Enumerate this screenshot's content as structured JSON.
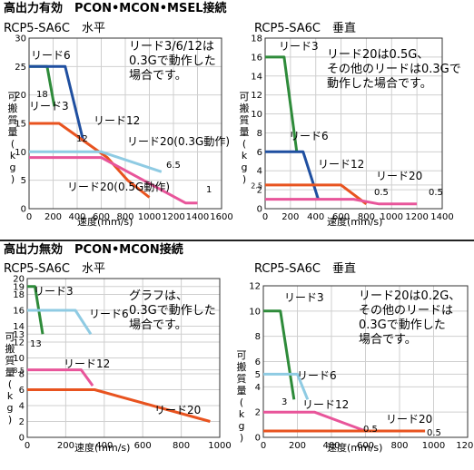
{
  "sections": [
    {
      "title": "高出力有効　PCON•MCON•MSEL接続"
    },
    {
      "title": "高出力無効　PCON•MCON接続"
    }
  ],
  "chart_data": [
    {
      "type": "line",
      "title": "RCP5-SA6C　水平",
      "xlabel": "速度(mm/s)",
      "ylabel": "可搬質量(kg)",
      "xlim": [
        0,
        1600
      ],
      "ylim": [
        0,
        30
      ],
      "xticks": [
        0,
        200,
        400,
        600,
        800,
        1000,
        1200,
        1400,
        1600
      ],
      "yticks": [
        0,
        5,
        10,
        15,
        20,
        25,
        30
      ],
      "grid": true,
      "series": [
        {
          "name": "リード3",
          "color": "#2e8b3a",
          "points": [
            [
              0,
              25
            ],
            [
              150,
              25
            ],
            [
              210,
              18
            ]
          ],
          "endlabel": "18"
        },
        {
          "name": "リード6",
          "color": "#1f4fa0",
          "points": [
            [
              0,
              25
            ],
            [
              300,
              25
            ],
            [
              450,
              12
            ]
          ],
          "endlabel": "12"
        },
        {
          "name": "リード12",
          "color": "#e8531f",
          "points": [
            [
              0,
              15
            ],
            [
              250,
              15
            ],
            [
              650,
              9
            ],
            [
              820,
              5
            ],
            [
              1000,
              2
            ]
          ]
        },
        {
          "name": "リード20(0.3G動作)",
          "color": "#8fcbe3",
          "points": [
            [
              0,
              10
            ],
            [
              600,
              10
            ],
            [
              1100,
              6.5
            ]
          ],
          "endlabel": "6.5"
        },
        {
          "name": "リード20(0.5G動作)",
          "color": "#e8559a",
          "points": [
            [
              0,
              9
            ],
            [
              600,
              9
            ],
            [
              1300,
              1
            ],
            [
              1400,
              1
            ]
          ],
          "endlabel": "1"
        }
      ],
      "note": "リード3/6/12は0.3Gで動作した場合です。",
      "labels": {
        "lead6": "リード6",
        "lead3": "リード3",
        "lead12": "リード12",
        "lead20a": "リード20(0.3G動作)",
        "lead20b": "リード20(0.5G動作)",
        "v18": "18",
        "v12": "12",
        "v65": "6.5",
        "v1": "1"
      }
    },
    {
      "type": "line",
      "title": "RCP5-SA6C　垂直",
      "xlabel": "速度(mm/s)",
      "ylabel": "可搬質量(kg)",
      "xlim": [
        0,
        1400
      ],
      "ylim": [
        0,
        18
      ],
      "xticks": [
        0,
        200,
        400,
        600,
        800,
        1000,
        1200,
        1400
      ],
      "yticks": [
        0,
        2,
        2.5,
        4,
        6,
        8,
        10,
        12,
        14,
        16,
        18
      ],
      "grid": true,
      "series": [
        {
          "name": "リード3",
          "color": "#2e8b3a",
          "points": [
            [
              0,
              16
            ],
            [
              150,
              16
            ],
            [
              250,
              6
            ]
          ]
        },
        {
          "name": "リード6",
          "color": "#1f4fa0",
          "points": [
            [
              0,
              6
            ],
            [
              300,
              6
            ],
            [
              420,
              1
            ]
          ]
        },
        {
          "name": "リード12",
          "color": "#e8531f",
          "points": [
            [
              0,
              2.5
            ],
            [
              600,
              2.5
            ],
            [
              800,
              0.5
            ]
          ],
          "endlabel": "0.5"
        },
        {
          "name": "リード20",
          "color": "#e8559a",
          "points": [
            [
              0,
              1
            ],
            [
              700,
              1
            ],
            [
              900,
              0.5
            ],
            [
              1200,
              0.5
            ]
          ],
          "endlabel": "0.5"
        }
      ],
      "note": "リード20は0.5G、その他のリードは0.3Gで動作した場合です。",
      "labels": {
        "lead3": "リード3",
        "lead6": "リード6",
        "lead12": "リード12",
        "lead20": "リード20",
        "v05a": "0.5",
        "v05b": "0.5"
      }
    },
    {
      "type": "line",
      "title": "RCP5-SA6C　水平",
      "xlabel": "速度(mm/s)",
      "ylabel": "可搬質量(kg)",
      "xlim": [
        0,
        1000
      ],
      "ylim": [
        0,
        20
      ],
      "xticks": [
        0,
        200,
        400,
        600,
        800,
        1000
      ],
      "yticks": [
        0,
        2,
        4,
        6,
        8,
        8.5,
        10,
        12,
        13,
        14,
        16,
        18,
        19,
        20
      ],
      "grid": true,
      "series": [
        {
          "name": "リード3",
          "color": "#2e8b3a",
          "points": [
            [
              0,
              19
            ],
            [
              40,
              19
            ],
            [
              80,
              13
            ]
          ],
          "endlabel": "13"
        },
        {
          "name": "リード6",
          "color": "#8fcbe3",
          "points": [
            [
              0,
              16
            ],
            [
              250,
              16
            ],
            [
              330,
              13
            ]
          ]
        },
        {
          "name": "リード12",
          "color": "#e8559a",
          "points": [
            [
              0,
              8.5
            ],
            [
              280,
              8.5
            ],
            [
              340,
              6.5
            ]
          ]
        },
        {
          "name": "リード20",
          "color": "#e8531f",
          "points": [
            [
              0,
              6
            ],
            [
              350,
              6
            ],
            [
              950,
              2
            ]
          ]
        }
      ],
      "note": "グラフは、0.3Gで動作した場合です。",
      "labels": {
        "lead3": "リード3",
        "lead6": "リード6",
        "lead12": "リード12",
        "lead20": "リード20",
        "v13": "13"
      }
    },
    {
      "type": "line",
      "title": "RCP5-SA6C　垂直",
      "xlabel": "速度(mm/s)",
      "ylabel": "可搬質量(kg)",
      "xlim": [
        0,
        1200
      ],
      "ylim": [
        0,
        12
      ],
      "xticks": [
        0,
        200,
        400,
        600,
        800,
        1000,
        1200
      ],
      "yticks": [
        0,
        2,
        4,
        5,
        6,
        8,
        10,
        12
      ],
      "grid": true,
      "series": [
        {
          "name": "リード3",
          "color": "#2e8b3a",
          "points": [
            [
              0,
              10
            ],
            [
              100,
              10
            ],
            [
              180,
              3
            ]
          ],
          "endlabel": "3"
        },
        {
          "name": "リード6",
          "color": "#8fcbe3",
          "points": [
            [
              0,
              5
            ],
            [
              200,
              5
            ],
            [
              260,
              3
            ]
          ]
        },
        {
          "name": "リード12",
          "color": "#e8559a",
          "points": [
            [
              0,
              2
            ],
            [
              300,
              2
            ],
            [
              600,
              0.5
            ]
          ],
          "endlabel": "0.5"
        },
        {
          "name": "リード20",
          "color": "#e8531f",
          "points": [
            [
              0,
              0.5
            ],
            [
              950,
              0.5
            ]
          ],
          "endlabel": "0.5"
        }
      ],
      "note": "リード20は0.2G、その他のリードは0.3Gで動作した場合です。",
      "labels": {
        "lead3": "リード3",
        "lead6": "リード6",
        "lead12": "リード12",
        "lead20": "リード20",
        "v3": "3",
        "v05a": "0.5",
        "v05b": "0.5"
      }
    }
  ]
}
